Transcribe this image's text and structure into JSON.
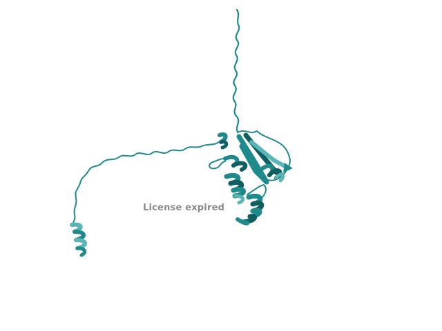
{
  "viewer": {
    "watermark_text": "License expired",
    "ribbon_color": "#1f8a8c",
    "ribbon_dark": "#0f5e60",
    "ribbon_light": "#5ab5b6",
    "background": "#ffffff"
  }
}
